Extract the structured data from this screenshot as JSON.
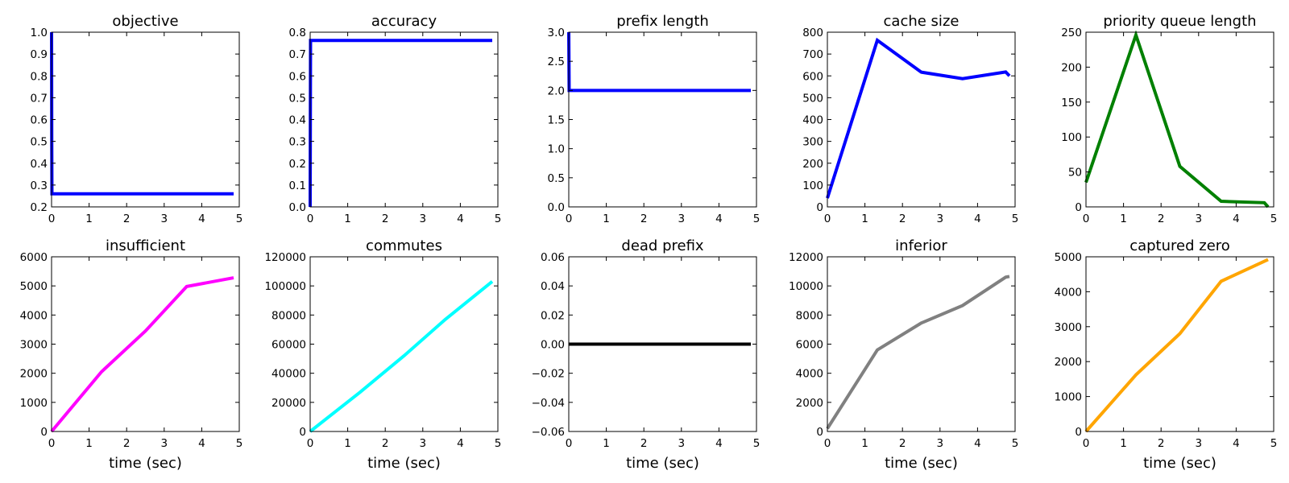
{
  "chart_data": [
    {
      "type": "line",
      "title": "objective",
      "xlabel": "",
      "xlim": [
        0,
        5
      ],
      "ylim": [
        0.2,
        1.0
      ],
      "xticks": [
        "0",
        "1",
        "2",
        "3",
        "4",
        "5"
      ],
      "yticks": [
        "0.2",
        "0.3",
        "0.4",
        "0.5",
        "0.6",
        "0.7",
        "0.8",
        "0.9",
        "1.0"
      ],
      "ytick_values": [
        0.2,
        0.3,
        0.4,
        0.5,
        0.6,
        0.7,
        0.8,
        0.9,
        1.0
      ],
      "color": "#0000ff",
      "series": [
        {
          "x": [
            0.0,
            0.005,
            0.01,
            4.85
          ],
          "y": [
            1.0,
            0.5,
            0.26,
            0.26
          ]
        }
      ]
    },
    {
      "type": "line",
      "title": "accuracy",
      "xlabel": "",
      "xlim": [
        0,
        5
      ],
      "ylim": [
        0.0,
        0.8
      ],
      "xticks": [
        "0",
        "1",
        "2",
        "3",
        "4",
        "5"
      ],
      "yticks": [
        "0.0",
        "0.1",
        "0.2",
        "0.3",
        "0.4",
        "0.5",
        "0.6",
        "0.7",
        "0.8"
      ],
      "ytick_values": [
        0.0,
        0.1,
        0.2,
        0.3,
        0.4,
        0.5,
        0.6,
        0.7,
        0.8
      ],
      "color": "#0000ff",
      "series": [
        {
          "x": [
            0.0,
            0.005,
            0.01,
            4.85
          ],
          "y": [
            0.0,
            0.4,
            0.762,
            0.762
          ]
        }
      ]
    },
    {
      "type": "line",
      "title": "prefix length",
      "xlabel": "",
      "xlim": [
        0,
        5
      ],
      "ylim": [
        0.0,
        3.0
      ],
      "xticks": [
        "0",
        "1",
        "2",
        "3",
        "4",
        "5"
      ],
      "yticks": [
        "0.0",
        "0.5",
        "1.0",
        "1.5",
        "2.0",
        "2.5",
        "3.0"
      ],
      "ytick_values": [
        0.0,
        0.5,
        1.0,
        1.5,
        2.0,
        2.5,
        3.0
      ],
      "color": "#0000ff",
      "series": [
        {
          "x": [
            0.0,
            0.005,
            0.01,
            4.85
          ],
          "y": [
            3.0,
            2.5,
            2.0,
            2.0
          ]
        }
      ]
    },
    {
      "type": "line",
      "title": "cache size",
      "xlabel": "",
      "xlim": [
        0,
        5
      ],
      "ylim": [
        0,
        800
      ],
      "xticks": [
        "0",
        "1",
        "2",
        "3",
        "4",
        "5"
      ],
      "yticks": [
        "0",
        "100",
        "200",
        "300",
        "400",
        "500",
        "600",
        "700",
        "800"
      ],
      "ytick_values": [
        0,
        100,
        200,
        300,
        400,
        500,
        600,
        700,
        800
      ],
      "color": "#0000ff",
      "series": [
        {
          "x": [
            0.0,
            1.33,
            2.5,
            3.6,
            4.75,
            4.85
          ],
          "y": [
            40,
            763,
            617,
            587,
            618,
            600
          ]
        }
      ]
    },
    {
      "type": "line",
      "title": "priority queue length",
      "xlabel": "",
      "xlim": [
        0,
        5
      ],
      "ylim": [
        0,
        250
      ],
      "xticks": [
        "0",
        "1",
        "2",
        "3",
        "4",
        "5"
      ],
      "yticks": [
        "0",
        "50",
        "100",
        "150",
        "200",
        "250"
      ],
      "ytick_values": [
        0,
        50,
        100,
        150,
        200,
        250
      ],
      "color": "#008000",
      "series": [
        {
          "x": [
            0.0,
            1.33,
            2.5,
            3.6,
            4.75,
            4.85
          ],
          "y": [
            35,
            246,
            58,
            8,
            6,
            0
          ]
        }
      ]
    },
    {
      "type": "line",
      "title": "insufficient",
      "xlabel": "time (sec)",
      "xlim": [
        0,
        5
      ],
      "ylim": [
        0,
        6000
      ],
      "xticks": [
        "0",
        "1",
        "2",
        "3",
        "4",
        "5"
      ],
      "yticks": [
        "0",
        "1000",
        "2000",
        "3000",
        "4000",
        "5000",
        "6000"
      ],
      "ytick_values": [
        0,
        1000,
        2000,
        3000,
        4000,
        5000,
        6000
      ],
      "color": "#ff00ff",
      "series": [
        {
          "x": [
            0.0,
            1.33,
            2.5,
            3.6,
            4.85
          ],
          "y": [
            0,
            2050,
            3450,
            4980,
            5280
          ]
        }
      ]
    },
    {
      "type": "line",
      "title": "commutes",
      "xlabel": "time (sec)",
      "xlim": [
        0,
        5
      ],
      "ylim": [
        0,
        120000
      ],
      "xticks": [
        "0",
        "1",
        "2",
        "3",
        "4",
        "5"
      ],
      "yticks": [
        "0",
        "20000",
        "40000",
        "60000",
        "80000",
        "100000",
        "120000"
      ],
      "ytick_values": [
        0,
        20000,
        40000,
        60000,
        80000,
        100000,
        120000
      ],
      "color": "#00ffff",
      "series": [
        {
          "x": [
            0.0,
            1.33,
            2.5,
            3.6,
            4.85
          ],
          "y": [
            0,
            27000,
            52000,
            77000,
            103000
          ]
        }
      ]
    },
    {
      "type": "line",
      "title": "dead prefix",
      "xlabel": "time (sec)",
      "xlim": [
        0,
        5
      ],
      "ylim": [
        -0.06,
        0.06
      ],
      "xticks": [
        "0",
        "1",
        "2",
        "3",
        "4",
        "5"
      ],
      "yticks": [
        "−0.06",
        "−0.04",
        "−0.02",
        "0.00",
        "0.02",
        "0.04",
        "0.06"
      ],
      "ytick_values": [
        -0.06,
        -0.04,
        -0.02,
        0.0,
        0.02,
        0.04,
        0.06
      ],
      "color": "#000000",
      "series": [
        {
          "x": [
            0.0,
            4.85
          ],
          "y": [
            0.0,
            0.0
          ]
        }
      ]
    },
    {
      "type": "line",
      "title": "inferior",
      "xlabel": "time (sec)",
      "xlim": [
        0,
        5
      ],
      "ylim": [
        0,
        12000
      ],
      "xticks": [
        "0",
        "1",
        "2",
        "3",
        "4",
        "5"
      ],
      "yticks": [
        "0",
        "2000",
        "4000",
        "6000",
        "8000",
        "10000",
        "12000"
      ],
      "ytick_values": [
        0,
        2000,
        4000,
        6000,
        8000,
        10000,
        12000
      ],
      "color": "#808080",
      "series": [
        {
          "x": [
            0.0,
            1.33,
            2.5,
            3.6,
            4.75,
            4.85
          ],
          "y": [
            200,
            5600,
            7450,
            8650,
            10600,
            10650
          ]
        }
      ]
    },
    {
      "type": "line",
      "title": "captured zero",
      "xlabel": "time (sec)",
      "xlim": [
        0,
        5
      ],
      "ylim": [
        0,
        5000
      ],
      "xticks": [
        "0",
        "1",
        "2",
        "3",
        "4",
        "5"
      ],
      "yticks": [
        "0",
        "1000",
        "2000",
        "3000",
        "4000",
        "5000"
      ],
      "ytick_values": [
        0,
        1000,
        2000,
        3000,
        4000,
        5000
      ],
      "color": "#ffa500",
      "series": [
        {
          "x": [
            0.0,
            1.33,
            2.5,
            3.6,
            4.85
          ],
          "y": [
            0,
            1620,
            2800,
            4300,
            4920
          ]
        }
      ]
    }
  ]
}
